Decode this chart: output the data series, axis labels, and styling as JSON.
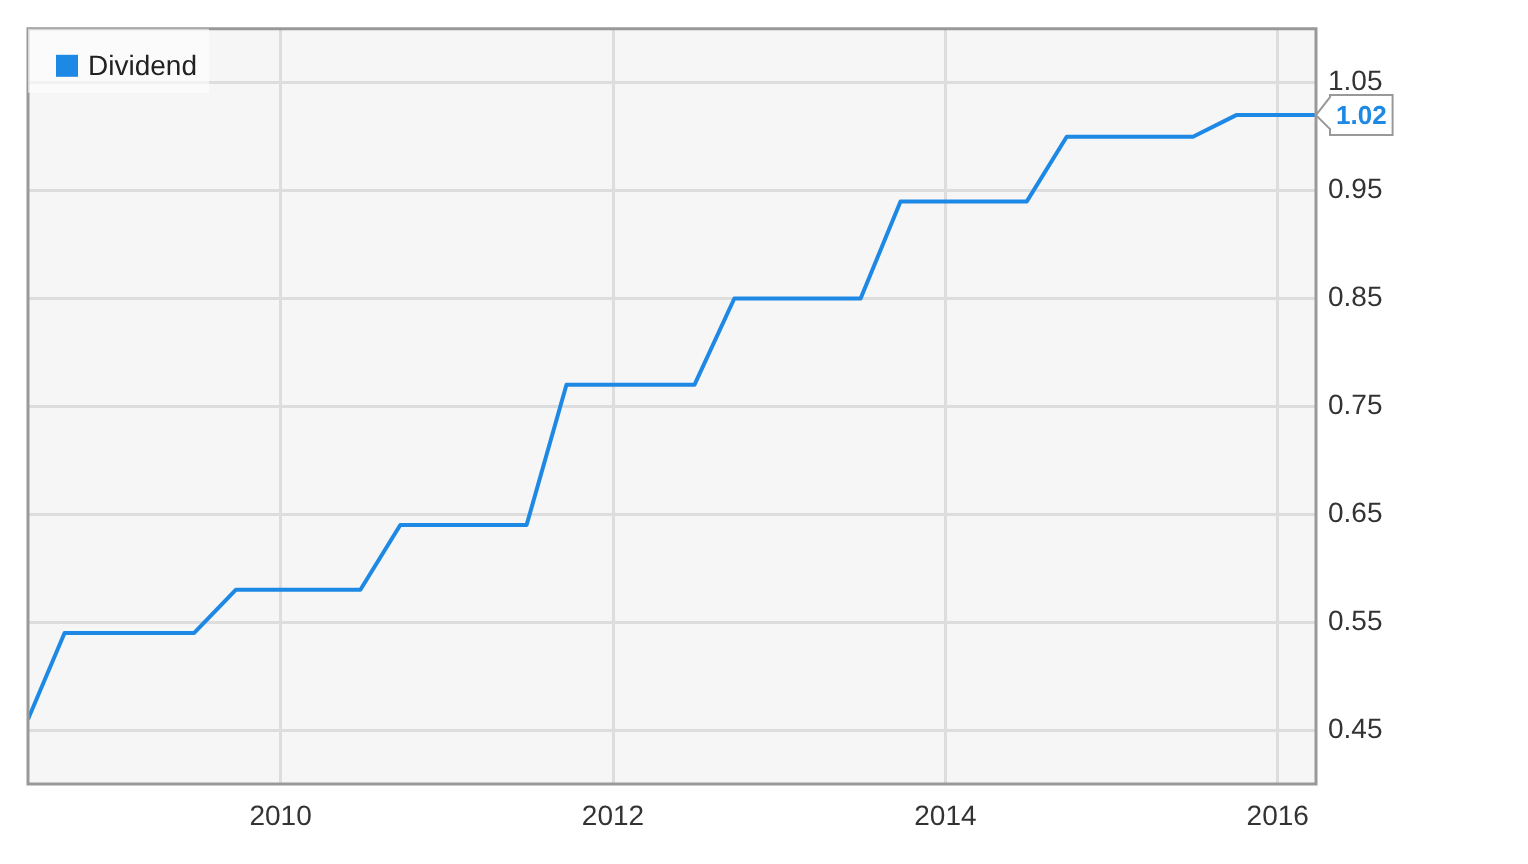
{
  "chart_data": {
    "type": "line",
    "x": [
      2008.48,
      2008.7,
      2009.48,
      2009.73,
      2010.48,
      2010.72,
      2011.48,
      2011.72,
      2012.49,
      2012.73,
      2013.49,
      2013.73,
      2014.49,
      2014.73,
      2015.49,
      2015.75,
      2016.23
    ],
    "series": [
      {
        "name": "Dividend",
        "color": "#1e88e5",
        "values": [
          0.46,
          0.54,
          0.54,
          0.58,
          0.58,
          0.64,
          0.64,
          0.77,
          0.77,
          0.85,
          0.85,
          0.94,
          0.94,
          1.0,
          1.0,
          1.02,
          1.02
        ]
      }
    ],
    "xlim": [
      2008.48,
      2016.23
    ],
    "xticks": [
      2010,
      2012,
      2014,
      2016
    ],
    "ylim": [
      0.4,
      1.1
    ],
    "yticks": [
      0.45,
      0.55,
      0.65,
      0.75,
      0.85,
      0.95,
      1.05
    ],
    "annotations": [
      {
        "text": "1.02",
        "x": 2016.23,
        "y": 1.02
      }
    ],
    "grid": true,
    "legend": "top left",
    "marker": "none",
    "line_style": "solid"
  }
}
